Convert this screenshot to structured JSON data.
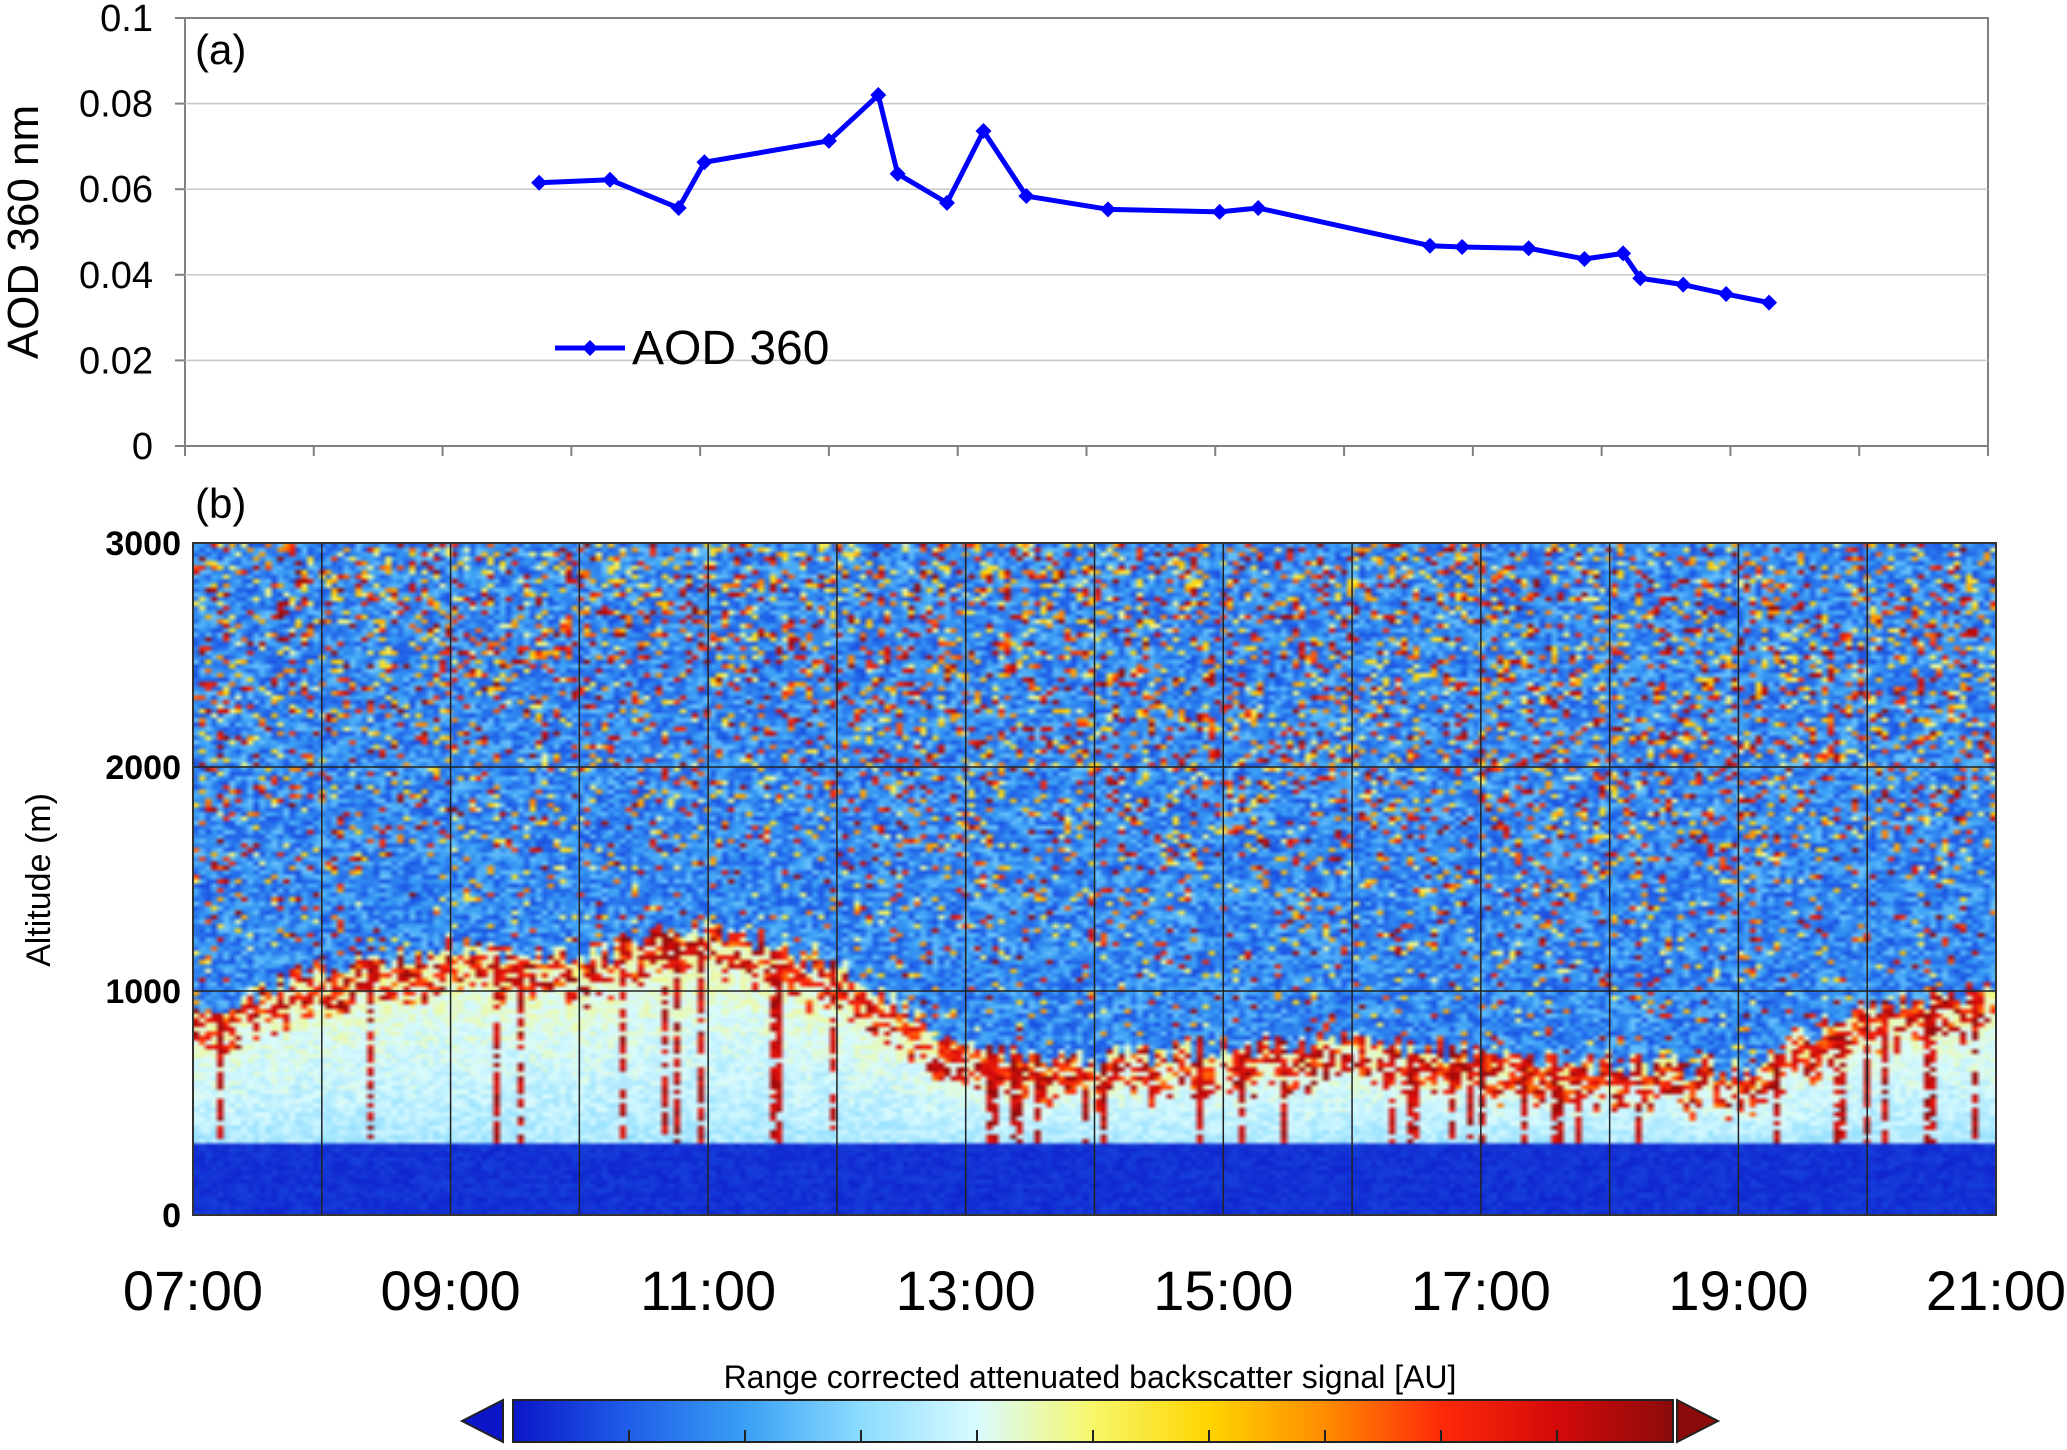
{
  "chart_data": [
    {
      "panel_label": "(a)",
      "type": "line",
      "ylabel": "AOD 360 nm",
      "ylim": [
        0,
        0.1
      ],
      "yticks": [
        "0",
        "0.02",
        "0.04",
        "0.06",
        "0.08",
        "0.1"
      ],
      "xlim_hours": [
        7,
        21
      ],
      "grid": "horizontal",
      "legend_position": "lower-left inside",
      "series": [
        {
          "name": "AOD 360",
          "color": "#0000ff",
          "marker": "diamond",
          "x": [
            "09:45",
            "10:18",
            "10:50",
            "11:02",
            "12:00",
            "12:23",
            "12:32",
            "12:55",
            "13:12",
            "13:32",
            "14:10",
            "15:02",
            "15:20",
            "16:40",
            "16:55",
            "17:26",
            "17:52",
            "18:10",
            "18:18",
            "18:38",
            "18:58",
            "19:18"
          ],
          "y": [
            0.0615,
            0.0622,
            0.0556,
            0.0663,
            0.0713,
            0.082,
            0.0636,
            0.0568,
            0.0736,
            0.0584,
            0.0553,
            0.0547,
            0.0556,
            0.0468,
            0.0465,
            0.0462,
            0.0437,
            0.045,
            0.0392,
            0.0377,
            0.0355,
            0.0335
          ]
        }
      ]
    },
    {
      "panel_label": "(b)",
      "type": "heatmap",
      "ylabel": "Altitude (m)",
      "ylim": [
        0,
        3000
      ],
      "yticks": [
        "0",
        "1000",
        "2000",
        "3000"
      ],
      "xticks": [
        "07:00",
        "09:00",
        "11:00",
        "13:00",
        "15:00",
        "17:00",
        "19:00",
        "21:00"
      ],
      "xlim_hours": [
        7,
        21
      ],
      "colorbar": {
        "label": "Range corrected attenuated backscatter signal [AU]",
        "colors": [
          "#0b16c8",
          "#1f5ee8",
          "#3aa0f5",
          "#8cdcff",
          "#d9fbff",
          "#f7f76a",
          "#ffd400",
          "#ff8c00",
          "#ff2a0a",
          "#d40a0a",
          "#8b0b0b"
        ],
        "under_color": "#0b16c8",
        "over_color": "#8b0b0b"
      },
      "features": {
        "surface_layer_top_m": 320,
        "aerosol_layer_top_m": [
          {
            "time": "07:00",
            "alt": 900
          },
          {
            "time": "08:00",
            "alt": 1100
          },
          {
            "time": "09:00",
            "alt": 1200
          },
          {
            "time": "10:00",
            "alt": 1150
          },
          {
            "time": "11:00",
            "alt": 1300
          },
          {
            "time": "12:00",
            "alt": 1100
          },
          {
            "time": "13:00",
            "alt": 750
          },
          {
            "time": "14:00",
            "alt": 700
          },
          {
            "time": "15:00",
            "alt": 750
          },
          {
            "time": "16:00",
            "alt": 800
          },
          {
            "time": "17:00",
            "alt": 720
          },
          {
            "time": "18:00",
            "alt": 680
          },
          {
            "time": "19:00",
            "alt": 650
          },
          {
            "time": "20:00",
            "alt": 950
          },
          {
            "time": "21:00",
            "alt": 1000
          }
        ]
      }
    }
  ]
}
